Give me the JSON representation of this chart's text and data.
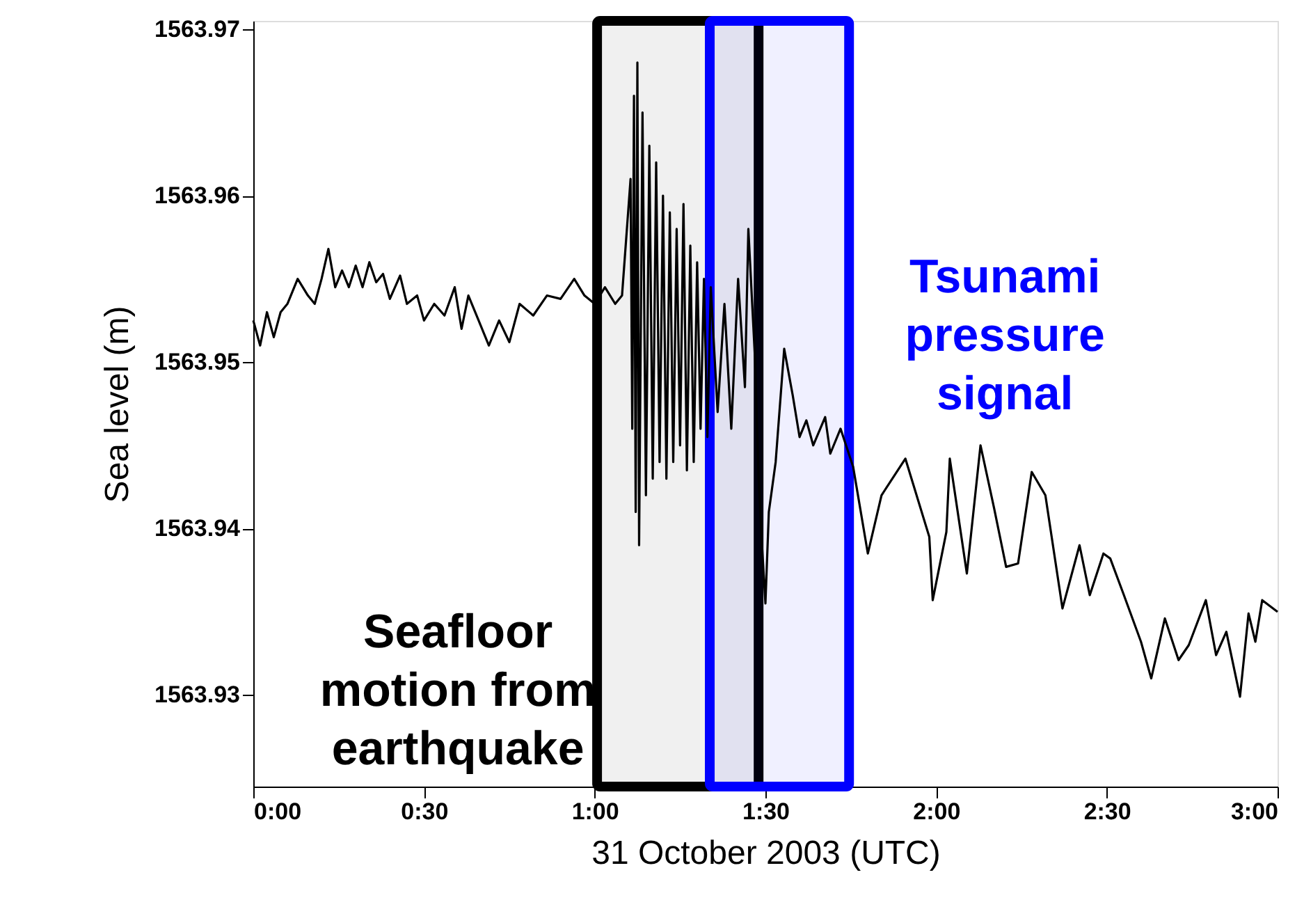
{
  "chart_data": {
    "type": "line",
    "xlabel": "31 October 2003 (UTC)",
    "ylabel": "Sea level (m)",
    "xlim": [
      0,
      3
    ],
    "ylim": [
      1563.9245,
      1563.9705
    ],
    "xticks": [
      {
        "value": 0,
        "label": "0:00"
      },
      {
        "value": 0.5,
        "label": "0:30"
      },
      {
        "value": 1,
        "label": "1:00"
      },
      {
        "value": 1.5,
        "label": "1:30"
      },
      {
        "value": 2,
        "label": "2:00"
      },
      {
        "value": 2.5,
        "label": "2:30"
      },
      {
        "value": 3,
        "label": "3:00"
      }
    ],
    "yticks": [
      1563.93,
      1563.94,
      1563.95,
      1563.96,
      1563.97
    ],
    "grid": false,
    "marker": "none",
    "line_style": "solid",
    "series": [
      {
        "color": "#000000",
        "x": [
          0,
          0.02,
          0.04,
          0.06,
          0.08,
          0.1,
          0.13,
          0.16,
          0.18,
          0.2,
          0.22,
          0.24,
          0.26,
          0.28,
          0.3,
          0.32,
          0.34,
          0.36,
          0.38,
          0.4,
          0.43,
          0.45,
          0.48,
          0.5,
          0.53,
          0.56,
          0.59,
          0.61,
          0.63,
          0.66,
          0.69,
          0.72,
          0.75,
          0.78,
          0.82,
          0.86,
          0.9,
          0.94,
          0.97,
          1.0,
          1.03,
          1.06,
          1.08,
          1.105,
          1.11,
          1.115,
          1.12,
          1.125,
          1.13,
          1.14,
          1.15,
          1.16,
          1.17,
          1.18,
          1.19,
          1.2,
          1.21,
          1.22,
          1.23,
          1.24,
          1.25,
          1.26,
          1.27,
          1.28,
          1.29,
          1.3,
          1.31,
          1.32,
          1.33,
          1.34,
          1.36,
          1.38,
          1.4,
          1.42,
          1.44,
          1.45,
          1.47,
          1.48,
          1.49,
          1.5,
          1.51,
          1.53,
          1.555,
          1.58,
          1.6,
          1.62,
          1.64,
          1.675,
          1.69,
          1.72,
          1.757,
          1.8,
          1.84,
          1.91,
          1.98,
          1.99,
          2.03,
          2.04,
          2.09,
          2.13,
          2.17,
          2.205,
          2.24,
          2.28,
          2.32,
          2.37,
          2.42,
          2.45,
          2.49,
          2.51,
          2.55,
          2.6,
          2.63,
          2.67,
          2.71,
          2.74,
          2.79,
          2.82,
          2.85,
          2.89,
          2.915,
          2.935,
          2.955,
          3.0
        ],
        "values": [
          1563.9525,
          1563.951,
          1563.953,
          1563.9515,
          1563.953,
          1563.9535,
          1563.955,
          1563.954,
          1563.9535,
          1563.955,
          1563.9568,
          1563.9545,
          1563.9555,
          1563.9545,
          1563.9558,
          1563.9545,
          1563.956,
          1563.9548,
          1563.9553,
          1563.9538,
          1563.9552,
          1563.9535,
          1563.954,
          1563.9525,
          1563.9535,
          1563.9528,
          1563.9545,
          1563.952,
          1563.954,
          1563.9525,
          1563.951,
          1563.9525,
          1563.9512,
          1563.9535,
          1563.9528,
          1563.954,
          1563.9538,
          1563.955,
          1563.954,
          1563.9535,
          1563.9545,
          1563.9535,
          1563.954,
          1563.961,
          1563.946,
          1563.966,
          1563.941,
          1563.968,
          1563.939,
          1563.965,
          1563.942,
          1563.963,
          1563.943,
          1563.962,
          1563.944,
          1563.96,
          1563.943,
          1563.959,
          1563.944,
          1563.958,
          1563.945,
          1563.9595,
          1563.9435,
          1563.957,
          1563.944,
          1563.956,
          1563.946,
          1563.955,
          1563.9455,
          1563.9545,
          1563.947,
          1563.9535,
          1563.946,
          1563.955,
          1563.9485,
          1563.958,
          1563.95,
          1563.943,
          1563.939,
          1563.9355,
          1563.941,
          1563.944,
          1563.9508,
          1563.948,
          1563.9455,
          1563.9465,
          1563.945,
          1563.9467,
          1563.9445,
          1563.946,
          1563.9437,
          1563.9385,
          1563.942,
          1563.9442,
          1563.9395,
          1563.9357,
          1563.9398,
          1563.9442,
          1563.9373,
          1563.945,
          1563.9412,
          1563.9377,
          1563.9379,
          1563.9434,
          1563.942,
          1563.9352,
          1563.939,
          1563.936,
          1563.9385,
          1563.9382,
          1563.936,
          1563.9332,
          1563.931,
          1563.9346,
          1563.9321,
          1563.933,
          1563.9357,
          1563.9324,
          1563.9338,
          1563.9299,
          1563.9349,
          1563.9332,
          1563.9357,
          1563.935
        ]
      }
    ],
    "bands": [
      {
        "axis": "x",
        "from": 1.007,
        "to": 1.48,
        "color": "#000000",
        "label": "Seafloor\nmotion from\nearthquake"
      },
      {
        "axis": "x",
        "from": 1.337,
        "to": 1.745,
        "color": "#0000ff",
        "label": "Tsunami\npressure\nsignal"
      }
    ]
  }
}
